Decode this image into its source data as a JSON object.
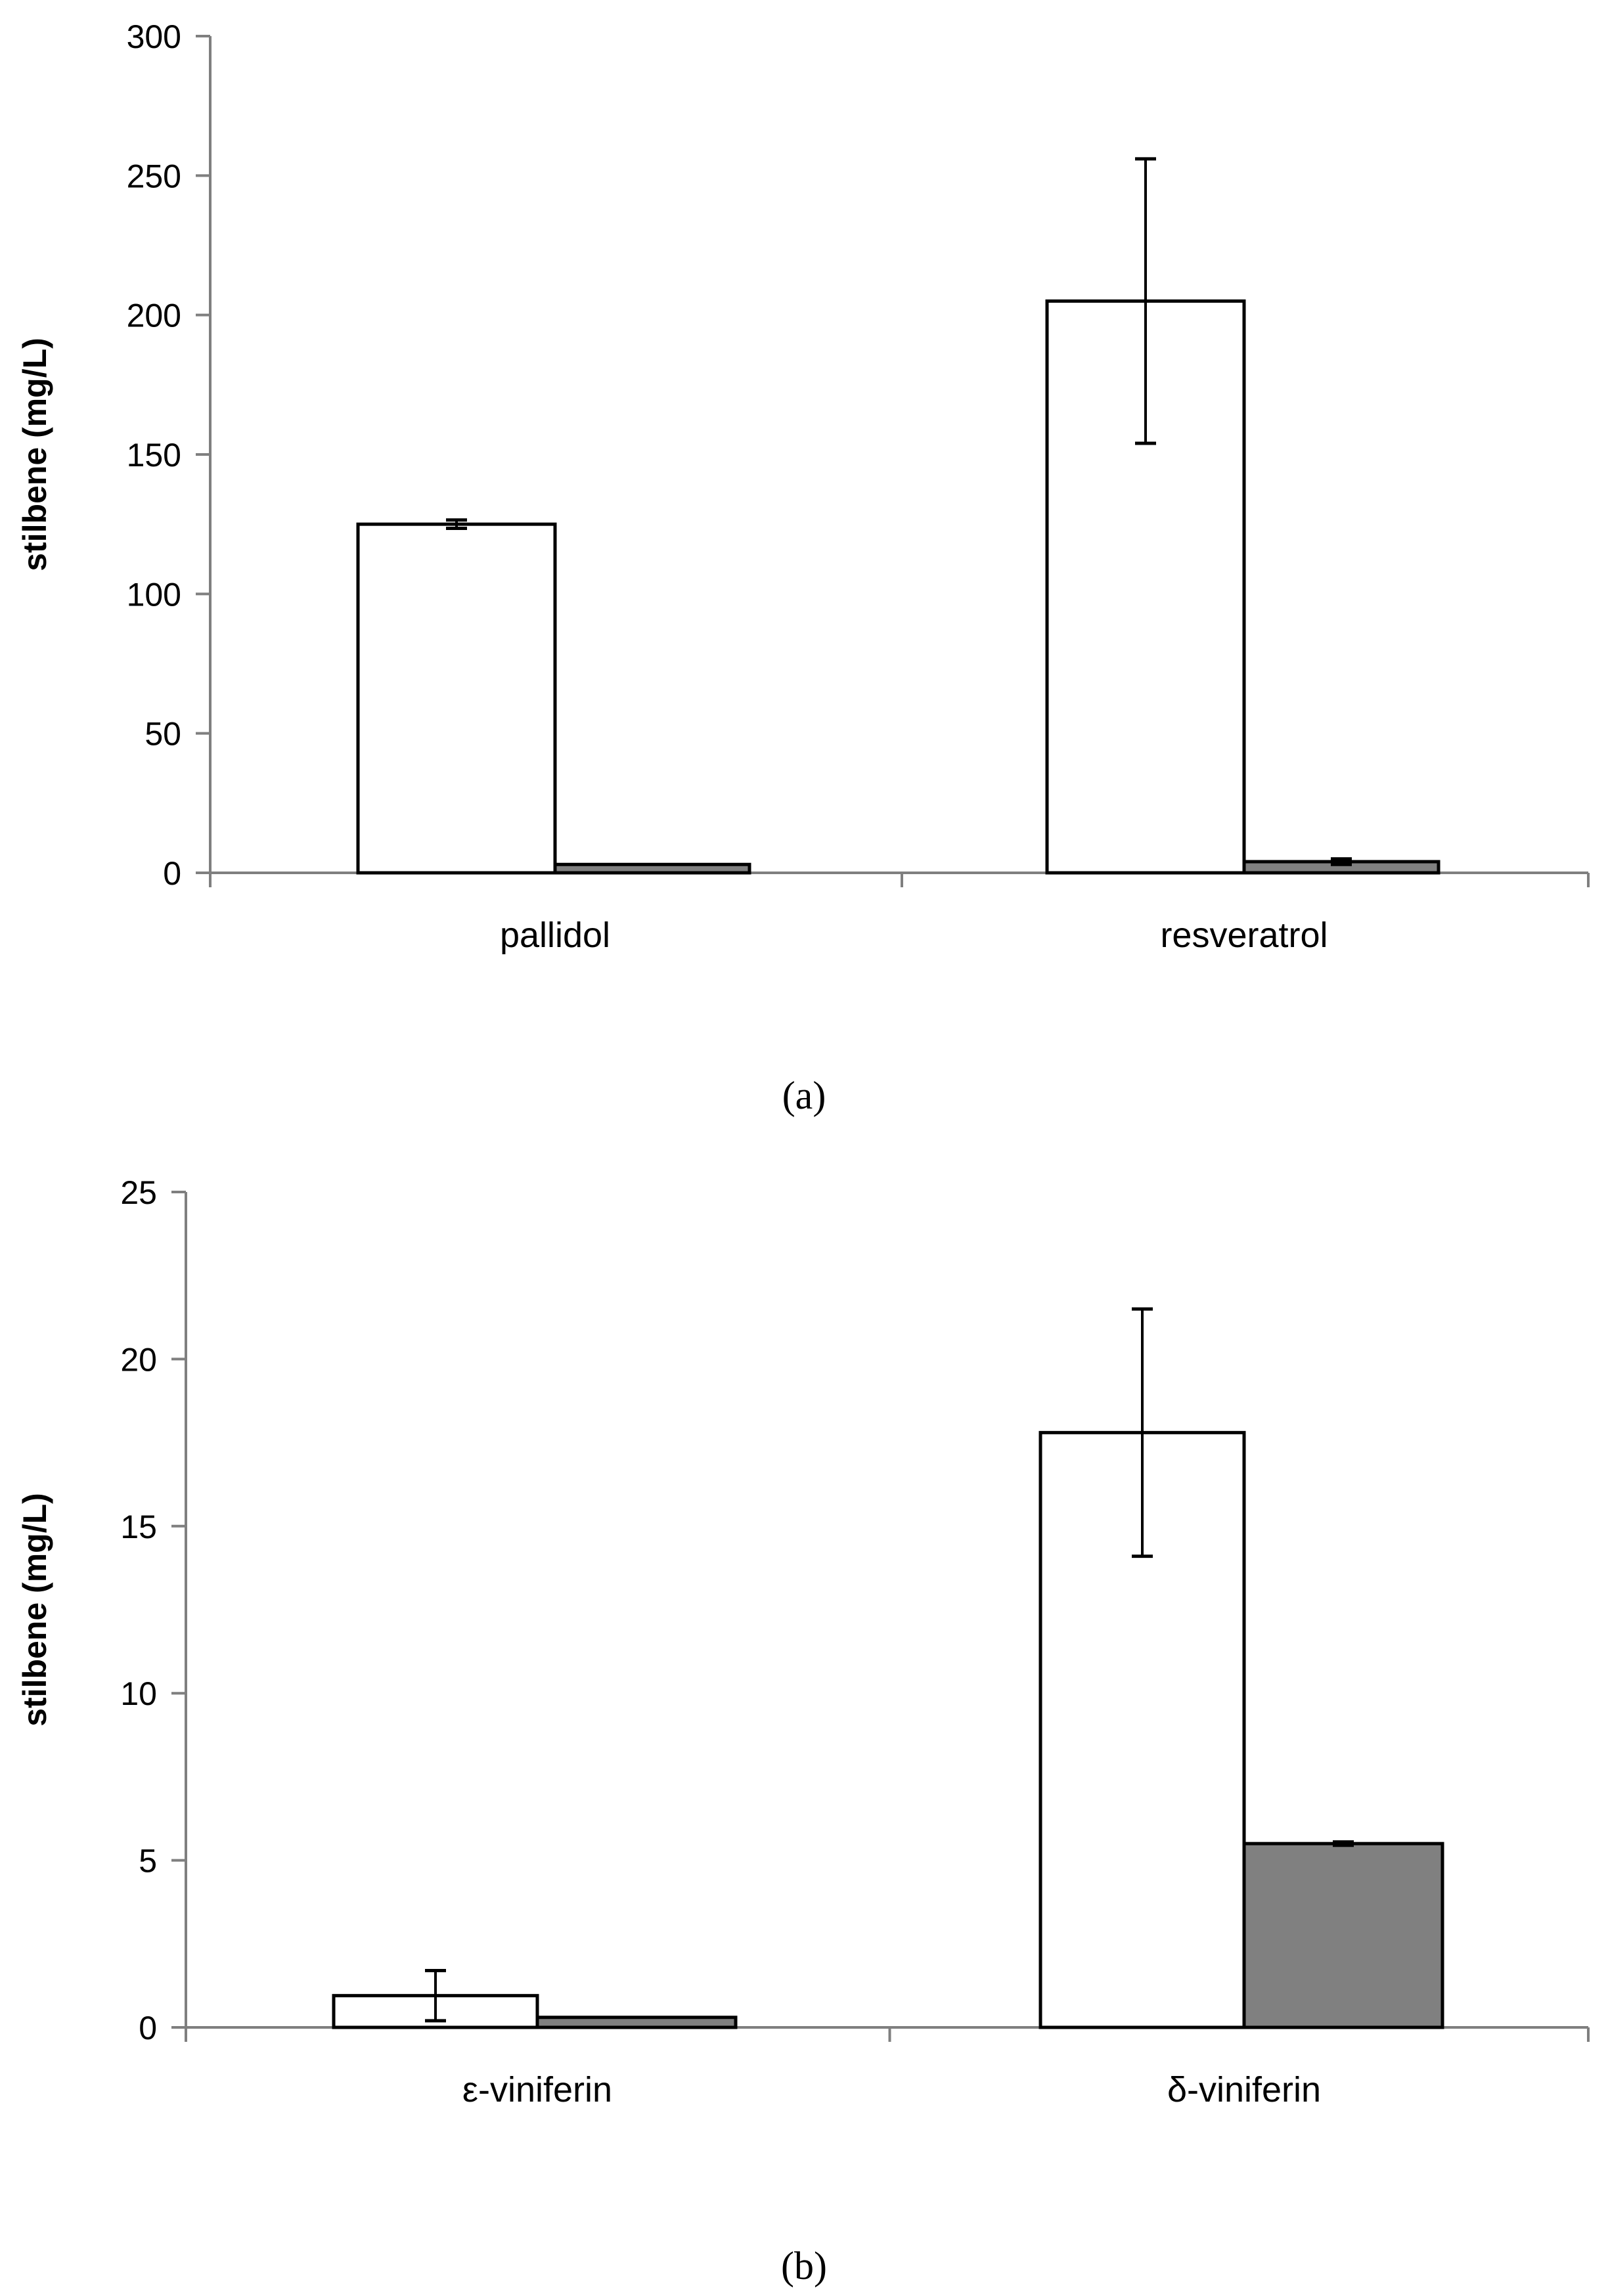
{
  "chart_data": [
    {
      "type": "bar",
      "panel_label": "(a)",
      "categories": [
        "pallidol",
        "resveratrol"
      ],
      "series": [
        {
          "color": "#ffffff",
          "values": [
            125,
            205
          ],
          "errors": [
            1.5,
            51
          ]
        },
        {
          "color": "#808080",
          "values": [
            3,
            4
          ],
          "errors": [
            0,
            1
          ]
        }
      ],
      "ylabel": "stilbene (mg/L)",
      "ylim": [
        0,
        300
      ],
      "yticks": [
        0,
        50,
        100,
        150,
        200,
        250,
        300
      ],
      "grid": false
    },
    {
      "type": "bar",
      "panel_label": "(b)",
      "categories": [
        "ε-viniferin",
        "δ-viniferin"
      ],
      "series": [
        {
          "color": "#ffffff",
          "values": [
            0.95,
            17.8
          ],
          "errors": [
            0.75,
            3.7
          ]
        },
        {
          "color": "#808080",
          "values": [
            0.3,
            5.5
          ],
          "errors": [
            0,
            0.05
          ]
        }
      ],
      "ylabel": "stilbene (mg/L)",
      "ylim": [
        0,
        25
      ],
      "yticks": [
        0,
        5,
        10,
        15,
        20,
        25
      ],
      "grid": false
    }
  ]
}
